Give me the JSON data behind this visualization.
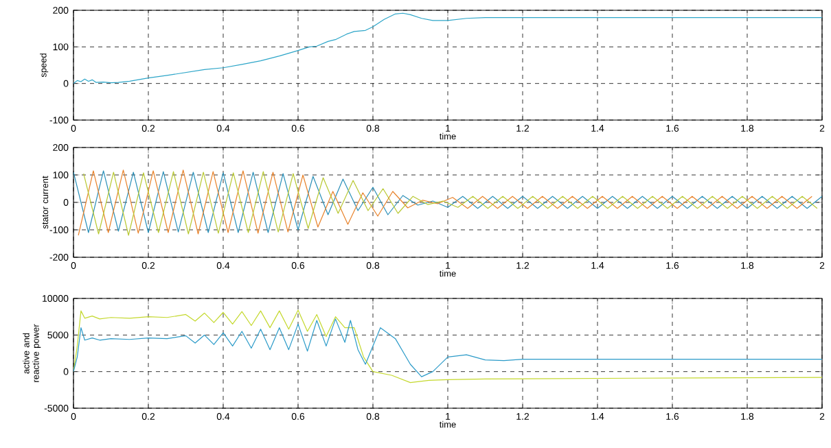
{
  "chart_data": [
    {
      "type": "line",
      "xlabel": "time",
      "ylabel": "speed",
      "xlim": [
        0,
        2
      ],
      "xticks": [
        0,
        0.2,
        0.4,
        0.6,
        0.8,
        1,
        1.2,
        1.4,
        1.6,
        1.8,
        2
      ],
      "ylim": [
        -100,
        200
      ],
      "yticks": [
        -100,
        0,
        100,
        200
      ],
      "grid": true,
      "series": [
        {
          "color": "#2ca5c8",
          "x": [
            0,
            0.01,
            0.02,
            0.03,
            0.04,
            0.05,
            0.06,
            0.08,
            0.1,
            0.12,
            0.15,
            0.2,
            0.25,
            0.3,
            0.35,
            0.4,
            0.45,
            0.5,
            0.55,
            0.6,
            0.63,
            0.65,
            0.68,
            0.7,
            0.73,
            0.75,
            0.78,
            0.8,
            0.83,
            0.86,
            0.88,
            0.9,
            0.93,
            0.96,
            1.0,
            1.05,
            1.1,
            1.2,
            1.5,
            2.0
          ],
          "values": [
            0,
            8,
            5,
            12,
            6,
            10,
            3,
            4,
            2,
            3,
            6,
            15,
            22,
            30,
            38,
            43,
            52,
            62,
            75,
            90,
            100,
            102,
            115,
            120,
            135,
            142,
            145,
            155,
            175,
            190,
            192,
            188,
            178,
            172,
            172,
            178,
            180,
            180,
            180,
            180
          ]
        }
      ]
    },
    {
      "type": "line",
      "xlabel": "time",
      "ylabel": "stator current",
      "xlim": [
        0,
        2
      ],
      "xticks": [
        0,
        0.2,
        0.4,
        0.6,
        0.8,
        1,
        1.2,
        1.4,
        1.6,
        1.8,
        2
      ],
      "ylim": [
        -200,
        200
      ],
      "yticks": [
        -200,
        -100,
        0,
        100,
        200
      ],
      "grid": true,
      "series": [
        {
          "color": "#2a8fb8",
          "x": [
            0,
            0.04,
            0.08,
            0.12,
            0.16,
            0.2,
            0.24,
            0.28,
            0.32,
            0.36,
            0.4,
            0.44,
            0.48,
            0.52,
            0.56,
            0.6,
            0.64,
            0.68,
            0.72,
            0.76,
            0.8,
            0.84,
            0.88,
            0.92,
            0.96,
            1.0,
            1.04,
            1.08,
            1.12,
            1.16,
            1.2,
            1.24,
            1.28,
            1.32,
            1.36,
            1.4,
            1.44,
            1.48,
            1.52,
            1.56,
            1.6,
            1.64,
            1.68,
            1.72,
            1.76,
            1.8,
            1.84,
            1.88,
            1.92,
            1.96,
            2.0
          ],
          "values": [
            110,
            -110,
            115,
            -105,
            110,
            -110,
            112,
            -108,
            110,
            -110,
            108,
            -110,
            110,
            -110,
            105,
            -100,
            95,
            -45,
            85,
            -30,
            55,
            -45,
            25,
            -10,
            5,
            -18,
            22,
            -22,
            22,
            -22,
            22,
            -22,
            22,
            -22,
            22,
            -22,
            22,
            -22,
            22,
            -22,
            22,
            -22,
            22,
            -22,
            22,
            -22,
            22,
            -22,
            22,
            -22,
            22
          ]
        },
        {
          "color": "#e8822a",
          "x": [
            0.013,
            0.053,
            0.093,
            0.133,
            0.173,
            0.213,
            0.253,
            0.293,
            0.333,
            0.373,
            0.413,
            0.453,
            0.493,
            0.533,
            0.573,
            0.613,
            0.653,
            0.693,
            0.733,
            0.773,
            0.813,
            0.853,
            0.893,
            0.933,
            0.973,
            1.013,
            1.053,
            1.093,
            1.133,
            1.173,
            1.213,
            1.253,
            1.293,
            1.333,
            1.373,
            1.413,
            1.453,
            1.493,
            1.533,
            1.573,
            1.613,
            1.653,
            1.693,
            1.733,
            1.773,
            1.813,
            1.853,
            1.893,
            1.933,
            1.973
          ],
          "values": [
            -120,
            115,
            -110,
            118,
            -112,
            115,
            -110,
            118,
            -115,
            112,
            -110,
            115,
            -112,
            110,
            -108,
            100,
            -90,
            40,
            -80,
            35,
            -50,
            40,
            -20,
            8,
            -5,
            18,
            -22,
            22,
            -22,
            22,
            -22,
            22,
            -22,
            22,
            -22,
            22,
            -22,
            22,
            -22,
            22,
            -22,
            22,
            -22,
            22,
            -22,
            22,
            -22,
            22,
            -22,
            22
          ]
        },
        {
          "color": "#b8c832",
          "x": [
            0.027,
            0.067,
            0.107,
            0.147,
            0.187,
            0.227,
            0.267,
            0.307,
            0.347,
            0.387,
            0.427,
            0.467,
            0.507,
            0.547,
            0.587,
            0.627,
            0.667,
            0.707,
            0.747,
            0.787,
            0.827,
            0.867,
            0.907,
            0.947,
            0.987,
            1.027,
            1.067,
            1.107,
            1.147,
            1.187,
            1.227,
            1.267,
            1.307,
            1.347,
            1.387,
            1.427,
            1.467,
            1.507,
            1.547,
            1.587,
            1.627,
            1.667,
            1.707,
            1.747,
            1.787,
            1.827,
            1.867,
            1.907,
            1.947,
            1.987
          ],
          "values": [
            105,
            -115,
            110,
            -120,
            108,
            -110,
            112,
            -115,
            110,
            -112,
            108,
            -110,
            112,
            -108,
            105,
            -95,
            90,
            -40,
            80,
            -30,
            50,
            -40,
            22,
            -8,
            5,
            -18,
            22,
            -22,
            22,
            -22,
            22,
            -22,
            22,
            -22,
            22,
            -22,
            22,
            -22,
            22,
            -22,
            22,
            -22,
            22,
            -22,
            22,
            -22,
            22,
            -22,
            22,
            -22
          ]
        }
      ]
    },
    {
      "type": "line",
      "xlabel": "time",
      "ylabel": "active and reactive power",
      "xlim": [
        0,
        2
      ],
      "xticks": [
        0,
        0.2,
        0.4,
        0.6,
        0.8,
        1,
        1.2,
        1.4,
        1.6,
        1.8,
        2
      ],
      "ylim": [
        -5000,
        10000
      ],
      "yticks": [
        -5000,
        0,
        5000,
        10000
      ],
      "grid": true,
      "series": [
        {
          "color": "#c4d82c",
          "x": [
            0,
            0.01,
            0.02,
            0.03,
            0.05,
            0.07,
            0.1,
            0.15,
            0.2,
            0.25,
            0.3,
            0.325,
            0.35,
            0.375,
            0.4,
            0.425,
            0.45,
            0.475,
            0.5,
            0.525,
            0.55,
            0.575,
            0.6,
            0.625,
            0.65,
            0.675,
            0.7,
            0.725,
            0.75,
            0.775,
            0.8,
            0.85,
            0.9,
            0.95,
            1.0,
            1.1,
            1.5,
            2.0
          ],
          "values": [
            0,
            3500,
            8300,
            7300,
            7600,
            7200,
            7400,
            7300,
            7500,
            7400,
            7800,
            6900,
            8000,
            6700,
            8100,
            6500,
            8200,
            6300,
            8300,
            6000,
            8300,
            5800,
            8400,
            5500,
            7800,
            4800,
            7500,
            6000,
            6000,
            2000,
            0,
            -500,
            -1500,
            -1200,
            -1100,
            -1000,
            -900,
            -800
          ]
        },
        {
          "color": "#2a9ac8",
          "x": [
            0,
            0.01,
            0.02,
            0.03,
            0.05,
            0.07,
            0.1,
            0.15,
            0.2,
            0.25,
            0.3,
            0.325,
            0.35,
            0.375,
            0.4,
            0.425,
            0.45,
            0.475,
            0.5,
            0.525,
            0.55,
            0.575,
            0.6,
            0.625,
            0.65,
            0.675,
            0.7,
            0.725,
            0.74,
            0.76,
            0.78,
            0.82,
            0.86,
            0.9,
            0.93,
            0.96,
            1.0,
            1.05,
            1.1,
            1.15,
            1.2,
            1.3,
            2.0
          ],
          "values": [
            0,
            2000,
            6000,
            4300,
            4600,
            4300,
            4500,
            4400,
            4600,
            4500,
            4900,
            3900,
            5000,
            3700,
            5300,
            3500,
            5500,
            3200,
            5800,
            3000,
            6000,
            3000,
            6500,
            2800,
            7000,
            3500,
            7200,
            4000,
            7000,
            3000,
            1000,
            6000,
            4500,
            1000,
            -700,
            0,
            2000,
            2300,
            1600,
            1500,
            1700,
            1700,
            1700
          ]
        }
      ]
    }
  ]
}
